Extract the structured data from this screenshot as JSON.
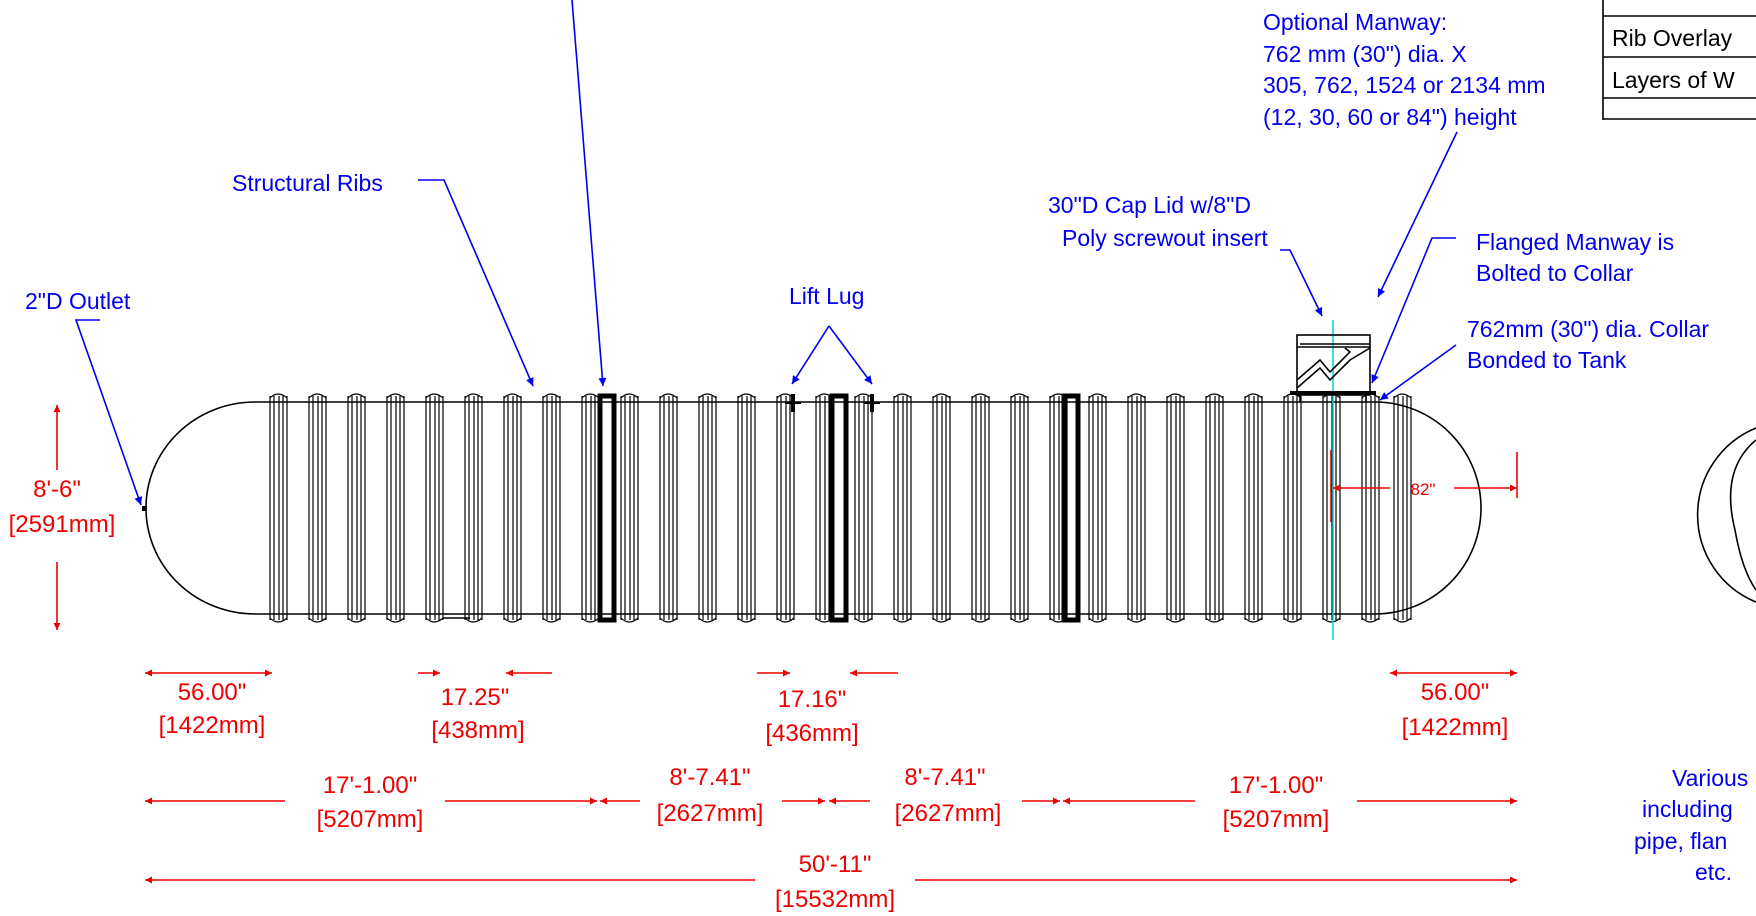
{
  "callouts": {
    "structural_ribs": "Structural Ribs",
    "outlet": "2\"D Outlet",
    "lift_lug": "Lift Lug",
    "cap_lid_1": "30\"D Cap Lid w/8\"D",
    "cap_lid_2": "Poly screwout insert",
    "optional_manway_1": "Optional Manway:",
    "optional_manway_2": "762 mm (30\") dia. X",
    "optional_manway_3": "305, 762, 1524 or 2134 mm",
    "optional_manway_4": "(12, 30, 60 or 84\") height",
    "flanged_manway_1": "Flanged Manway is",
    "flanged_manway_2": "Bolted to Collar",
    "collar_1": "762mm (30\") dia. Collar",
    "collar_2": "Bonded to Tank",
    "various_1": "Various",
    "various_2": "including",
    "various_3": "pipe, flan",
    "various_4": "etc."
  },
  "table": {
    "row1": "Rib Overlay",
    "row2": "Layers of W"
  },
  "dimensions": {
    "height_imp": "8'-6\"",
    "height_met": "[2591mm]",
    "end_left_imp": "56.00\"",
    "end_left_met": "[1422mm]",
    "rib_spacing_imp": "17.25\"",
    "rib_spacing_met": "[438mm]",
    "lug_spacing_imp": "17.16\"",
    "lug_spacing_met": "[436mm]",
    "end_right_imp": "56.00\"",
    "end_right_met": "[1422mm]",
    "manway_offset": "82\"",
    "seg1_imp": "17'-1.00\"",
    "seg1_met": "[5207mm]",
    "seg2_imp": "8'-7.41\"",
    "seg2_met": "[2627mm]",
    "seg3_imp": "8'-7.41\"",
    "seg3_met": "[2627mm]",
    "seg4_imp": "17'-1.00\"",
    "seg4_met": "[5207mm]",
    "overall_imp": "50'-11\"",
    "overall_met": "[15532mm]"
  },
  "colors": {
    "callout": "#0000ee",
    "dimension": "#ee0000",
    "centerline": "#00d0d0",
    "outline": "#000000"
  }
}
